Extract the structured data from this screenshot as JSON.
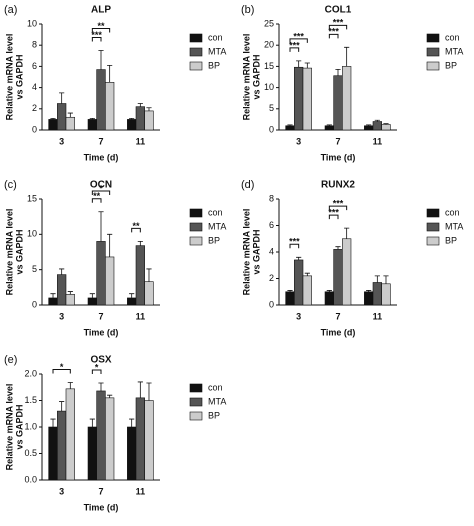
{
  "chart_data": [
    {
      "type": "bar",
      "panel": "(a)",
      "title": "ALP",
      "ylabel": [
        "Relative mRNA level",
        "vs GAPDH"
      ],
      "xlabel": "Time (d)",
      "categories": [
        "3",
        "7",
        "11"
      ],
      "series": [
        {
          "name": "con",
          "color": "#111111",
          "values": [
            1,
            1,
            1
          ],
          "errors": [
            0.1,
            0.1,
            0.1
          ]
        },
        {
          "name": "MTA",
          "color": "#555555",
          "values": [
            2.5,
            5.7,
            2.2
          ],
          "errors": [
            1.0,
            1.8,
            0.3
          ]
        },
        {
          "name": "BP",
          "color": "#cccccc",
          "values": [
            1.2,
            4.5,
            1.8
          ],
          "errors": [
            0.4,
            1.6,
            0.3
          ]
        }
      ],
      "ylim": [
        0,
        10
      ],
      "yticks": [
        0,
        2,
        4,
        6,
        8,
        10
      ],
      "significance": [
        {
          "label": "***",
          "category": "7",
          "from": "con",
          "to": "MTA"
        },
        {
          "label": "**",
          "category": "7",
          "from": "con",
          "to": "BP"
        }
      ]
    },
    {
      "type": "bar",
      "panel": "(b)",
      "title": "COL1",
      "ylabel": [
        "Relative mRNA level",
        "vs GAPDH"
      ],
      "xlabel": "Time (d)",
      "categories": [
        "3",
        "7",
        "11"
      ],
      "series": [
        {
          "name": "con",
          "color": "#111111",
          "values": [
            1,
            1,
            1
          ],
          "errors": [
            0.2,
            0.2,
            0.2
          ]
        },
        {
          "name": "MTA",
          "color": "#555555",
          "values": [
            14.8,
            12.8,
            2
          ],
          "errors": [
            1.5,
            1.5,
            0.3
          ]
        },
        {
          "name": "BP",
          "color": "#cccccc",
          "values": [
            14.6,
            15,
            1.3
          ],
          "errors": [
            1.2,
            4.5,
            0.2
          ]
        }
      ],
      "ylim": [
        0,
        25
      ],
      "yticks": [
        0,
        5,
        10,
        15,
        20,
        25
      ],
      "significance": [
        {
          "label": "***",
          "category": "3",
          "from": "con",
          "to": "MTA"
        },
        {
          "label": "***",
          "category": "3",
          "from": "con",
          "to": "BP"
        },
        {
          "label": "***",
          "category": "7",
          "from": "con",
          "to": "MTA"
        },
        {
          "label": "***",
          "category": "7",
          "from": "con",
          "to": "BP"
        }
      ]
    },
    {
      "type": "bar",
      "panel": "(c)",
      "title": "OCN",
      "ylabel": [
        "Relative mRNA level",
        "vs GAPDH"
      ],
      "xlabel": "Time (d)",
      "categories": [
        "3",
        "7",
        "11"
      ],
      "series": [
        {
          "name": "con",
          "color": "#111111",
          "values": [
            1,
            1,
            1
          ],
          "errors": [
            0.6,
            0.6,
            0.6
          ]
        },
        {
          "name": "MTA",
          "color": "#555555",
          "values": [
            4.3,
            9,
            8.4
          ],
          "errors": [
            0.8,
            4.2,
            0.6
          ]
        },
        {
          "name": "BP",
          "color": "#cccccc",
          "values": [
            1.5,
            6.8,
            3.3
          ],
          "errors": [
            0.4,
            3.2,
            1.8
          ]
        }
      ],
      "ylim": [
        0,
        15
      ],
      "yticks": [
        0,
        5,
        10,
        15
      ],
      "significance": [
        {
          "label": "**",
          "category": "7",
          "from": "con",
          "to": "MTA"
        },
        {
          "label": "*",
          "category": "7",
          "from": "con",
          "to": "BP"
        },
        {
          "label": "**",
          "category": "11",
          "from": "con",
          "to": "MTA"
        }
      ]
    },
    {
      "type": "bar",
      "panel": "(d)",
      "title": "RUNX2",
      "ylabel": [
        "Relative mRNA level",
        "vs GAPDH"
      ],
      "xlabel": "Time (d)",
      "categories": [
        "3",
        "7",
        "11"
      ],
      "series": [
        {
          "name": "con",
          "color": "#111111",
          "values": [
            1,
            1,
            1
          ],
          "errors": [
            0.1,
            0.1,
            0.1
          ]
        },
        {
          "name": "MTA",
          "color": "#555555",
          "values": [
            3.4,
            4.2,
            1.7
          ],
          "errors": [
            0.2,
            0.2,
            0.5
          ]
        },
        {
          "name": "BP",
          "color": "#cccccc",
          "values": [
            2.2,
            5,
            1.6
          ],
          "errors": [
            0.2,
            0.8,
            0.6
          ]
        }
      ],
      "ylim": [
        0,
        8
      ],
      "yticks": [
        0,
        2,
        4,
        6,
        8
      ],
      "significance": [
        {
          "label": "***",
          "category": "3",
          "from": "con",
          "to": "MTA"
        },
        {
          "label": "***",
          "category": "7",
          "from": "con",
          "to": "MTA"
        },
        {
          "label": "***",
          "category": "7",
          "from": "con",
          "to": "BP"
        }
      ]
    },
    {
      "type": "bar",
      "panel": "(e)",
      "title": "OSX",
      "ylabel": [
        "Relative mRNA level",
        "vs GAPDH"
      ],
      "xlabel": "Time (d)",
      "categories": [
        "3",
        "7",
        "11"
      ],
      "series": [
        {
          "name": "con",
          "color": "#111111",
          "values": [
            1,
            1,
            1
          ],
          "errors": [
            0.15,
            0.15,
            0.15
          ]
        },
        {
          "name": "MTA",
          "color": "#555555",
          "values": [
            1.3,
            1.68,
            1.55
          ],
          "errors": [
            0.18,
            0.15,
            0.3
          ]
        },
        {
          "name": "BP",
          "color": "#cccccc",
          "values": [
            1.72,
            1.55,
            1.5
          ],
          "errors": [
            0.12,
            0.05,
            0.33
          ]
        }
      ],
      "ylim": [
        0,
        2
      ],
      "yticks": [
        {
          "value": 0,
          "label": "0.0"
        },
        {
          "value": 0.5,
          "label": "0.5"
        },
        {
          "value": 1,
          "label": "1.0"
        },
        {
          "value": 1.5,
          "label": "1.5"
        },
        {
          "value": 2,
          "label": "2.0"
        }
      ],
      "significance": [
        {
          "label": "*",
          "category": "3",
          "from": "con",
          "to": "BP"
        },
        {
          "label": "*",
          "category": "7",
          "from": "con",
          "to": "MTA"
        }
      ]
    }
  ]
}
